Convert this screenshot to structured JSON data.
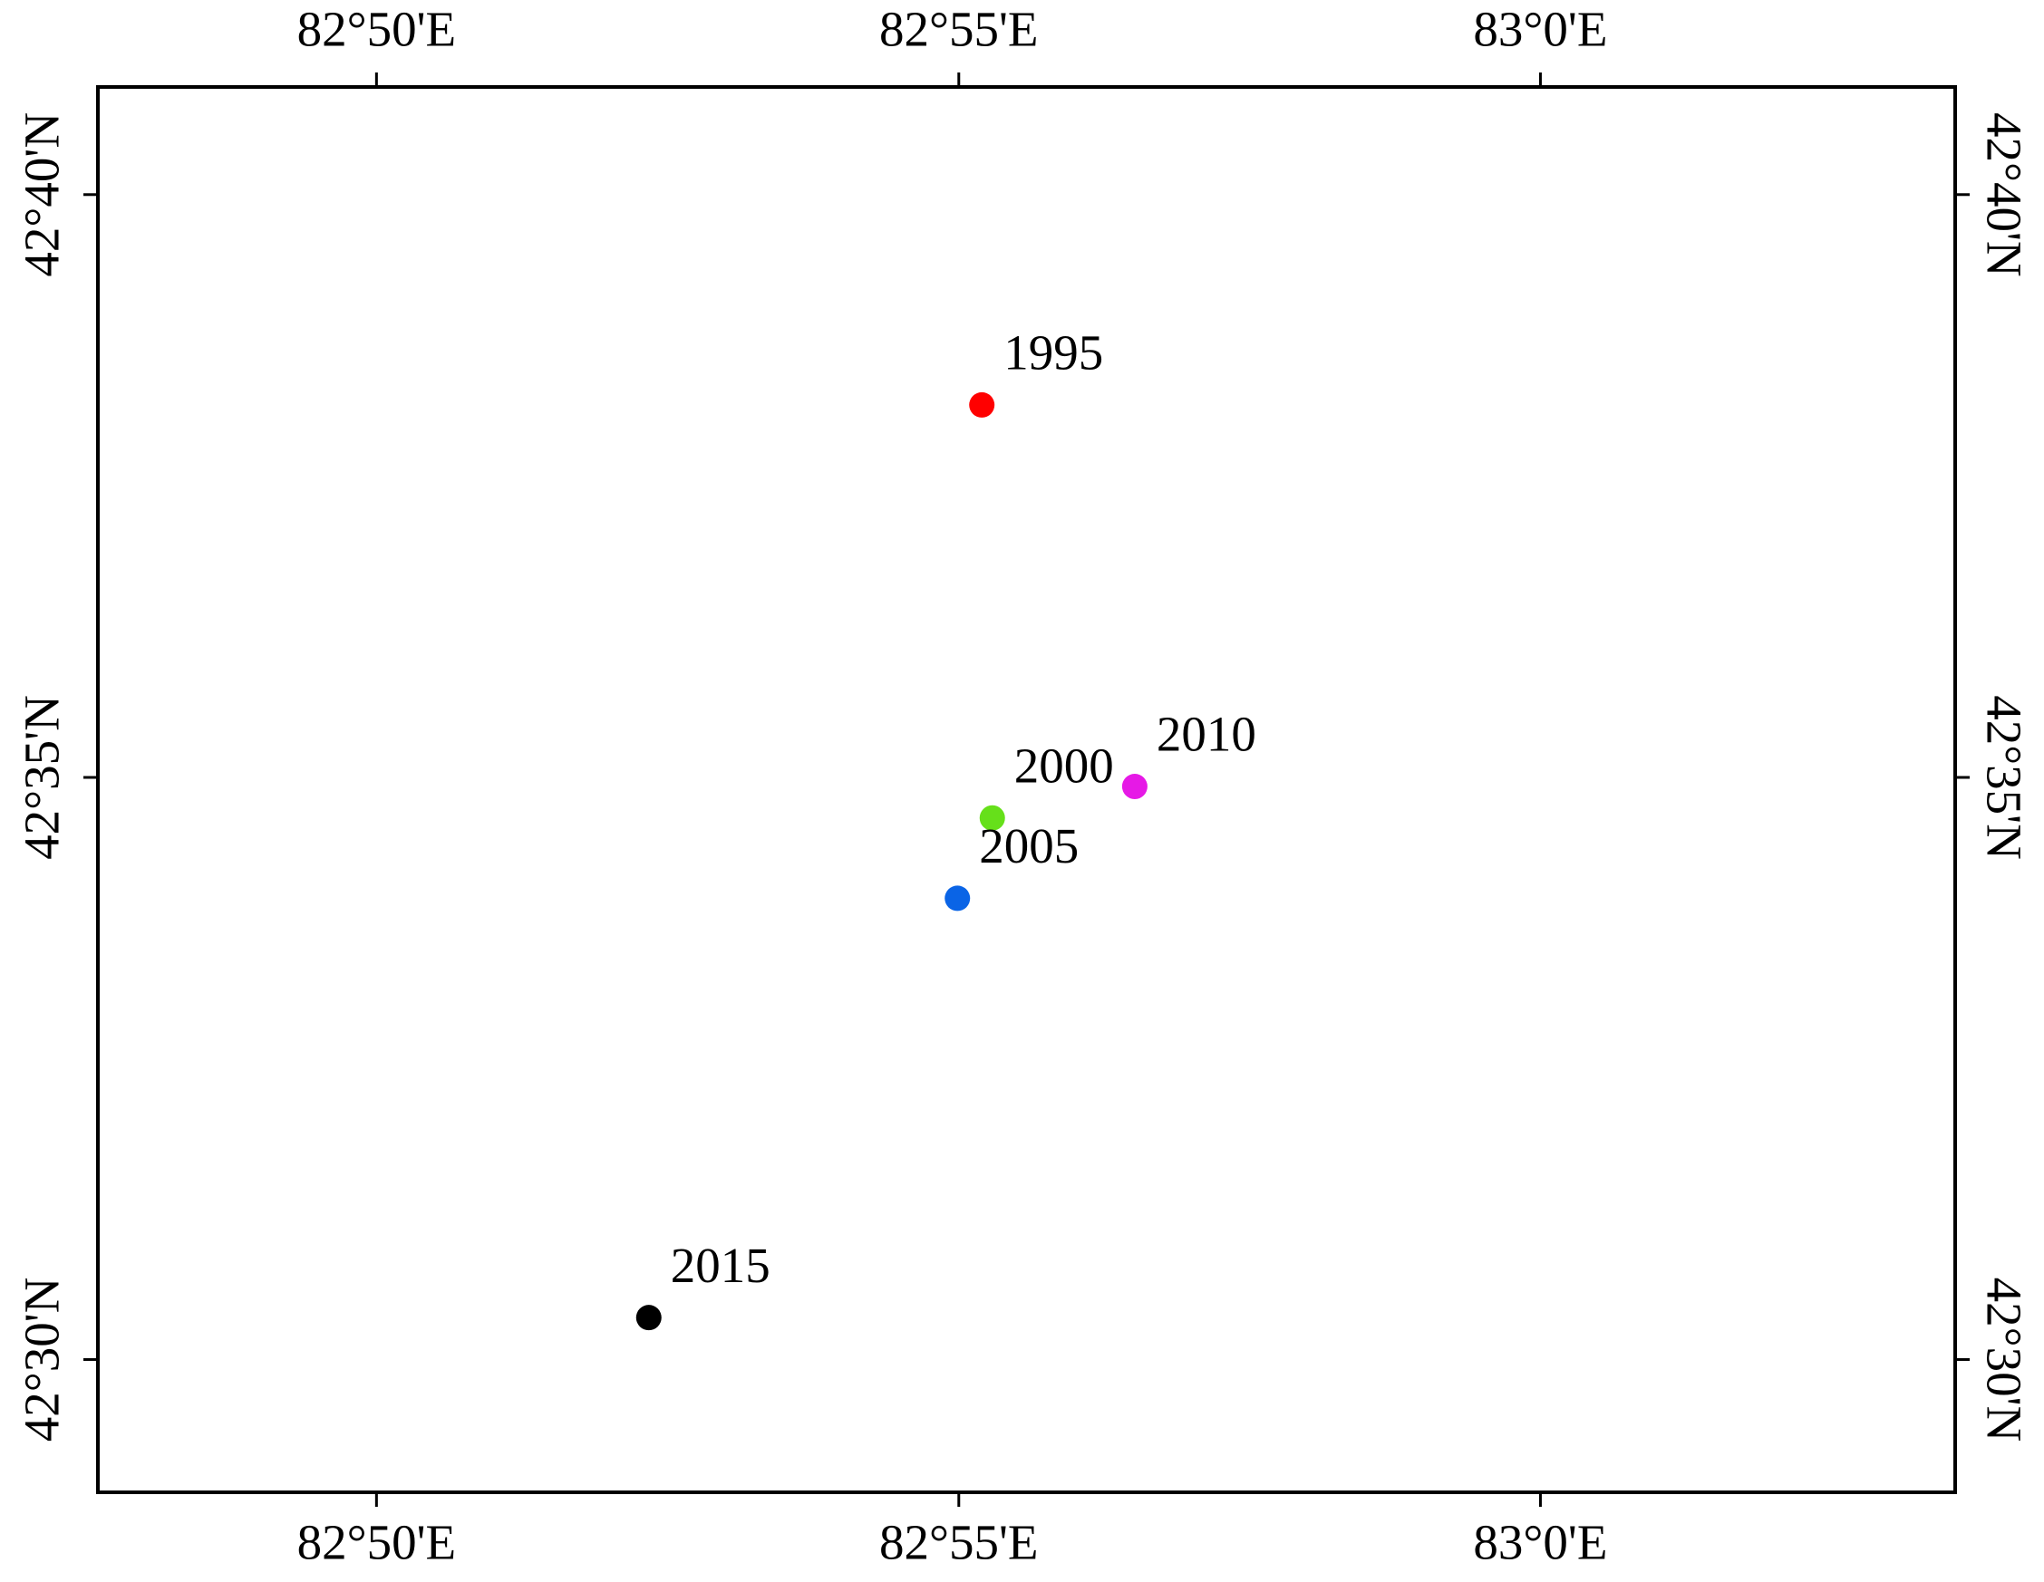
{
  "chart_data": {
    "type": "scatter",
    "x": [
      82.92,
      82.9215,
      82.9165,
      82.9419,
      82.8723
    ],
    "values": [
      42.6366,
      42.5775,
      42.566,
      42.582,
      42.506
    ],
    "point_labels": [
      "1995",
      "2000",
      "2005",
      "2010",
      "2015"
    ],
    "colors": [
      "#ff0000",
      "#66e01a",
      "#0a64e6",
      "#e619e6",
      "#000000"
    ],
    "xlim": [
      82.7934,
      83.0594
    ],
    "ylim": [
      42.481,
      42.6821
    ],
    "xticks": [
      {
        "value": 82.8333,
        "label": "82°50'E"
      },
      {
        "value": 82.9167,
        "label": "82°55'E"
      },
      {
        "value": 83.0,
        "label": "83°0'E"
      }
    ],
    "yticks": [
      {
        "value": 42.5,
        "label": "42°30'N"
      },
      {
        "value": 42.5833,
        "label": "42°35'N"
      },
      {
        "value": 42.6667,
        "label": "42°40'N"
      }
    ]
  }
}
